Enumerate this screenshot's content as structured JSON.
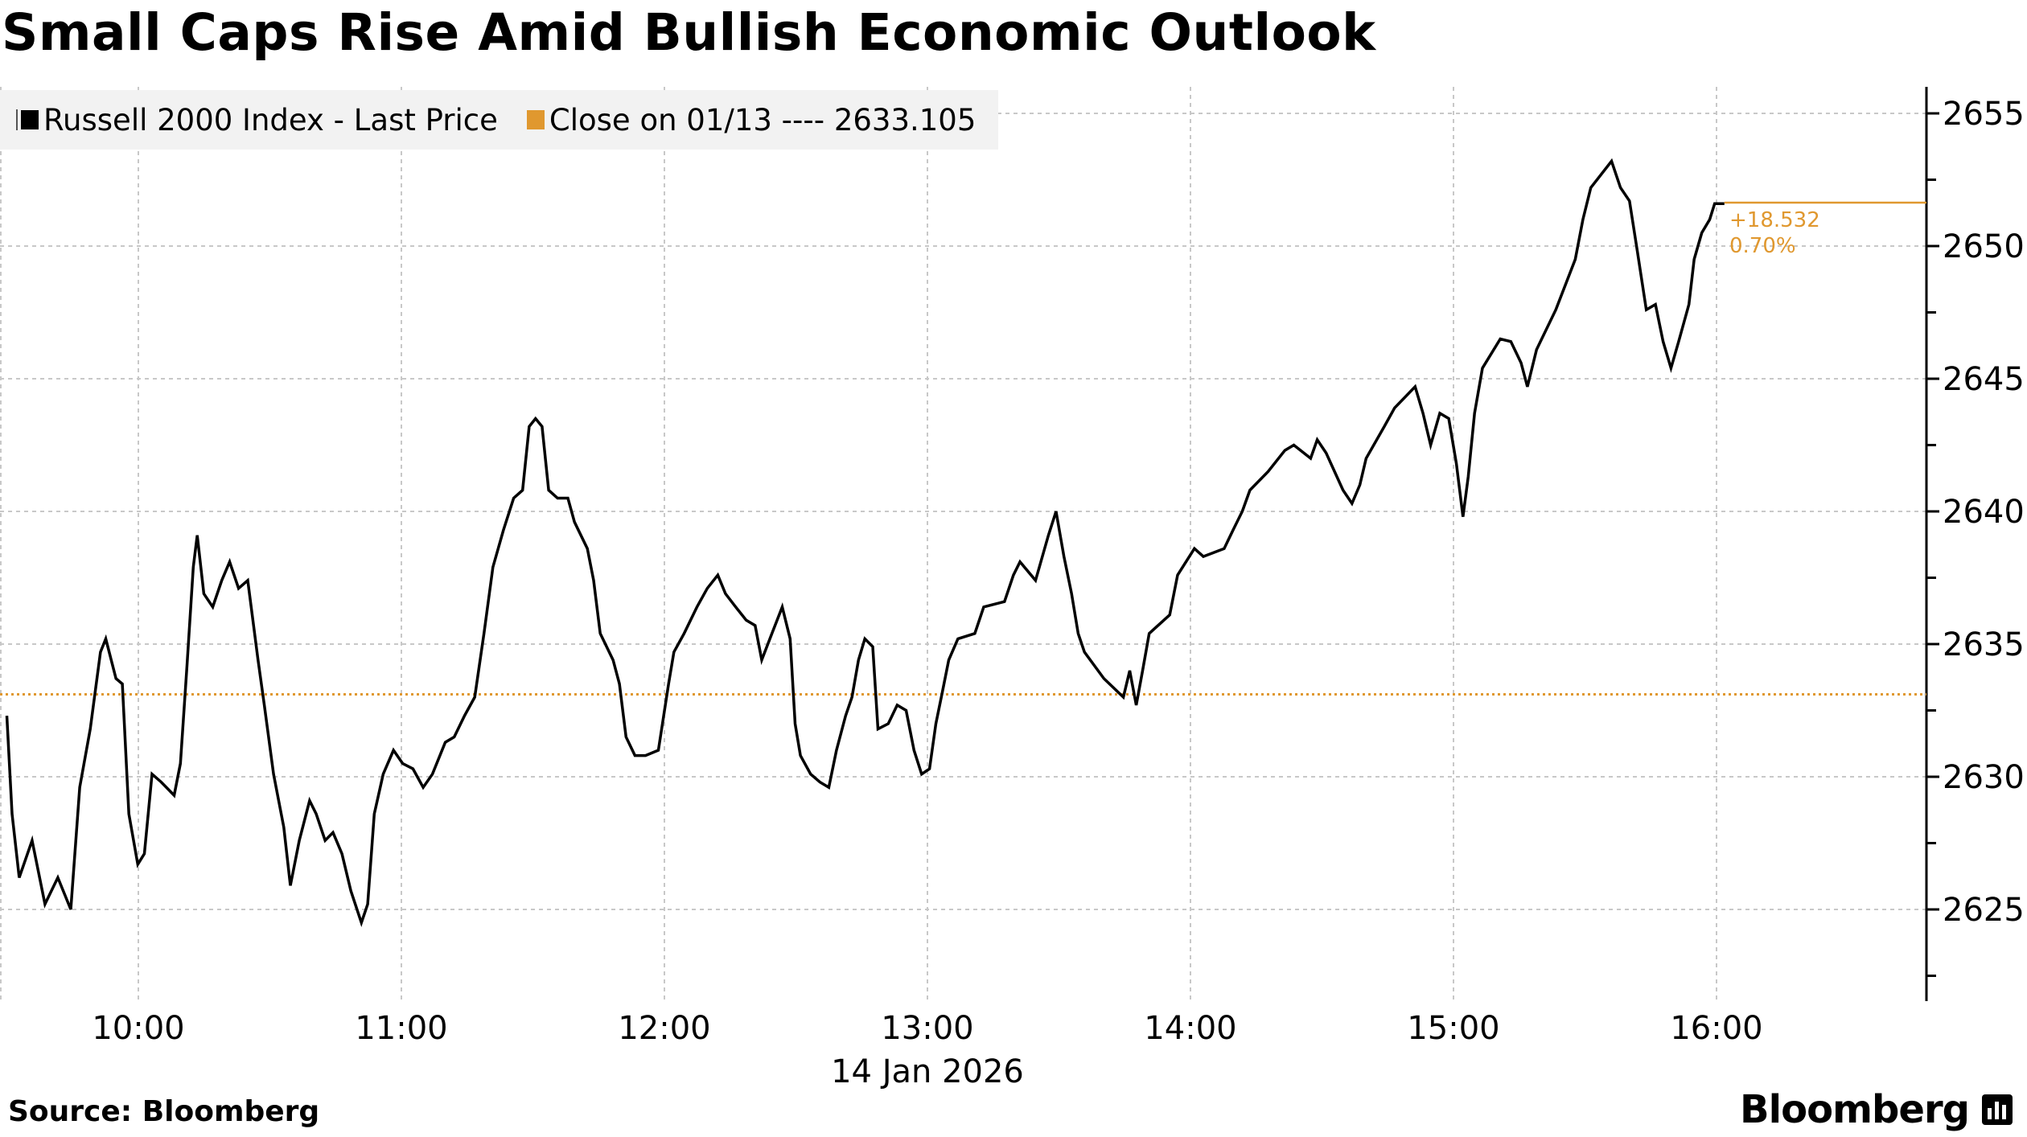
{
  "title": "Small Caps Rise Amid Bullish Economic Outlook",
  "legend": {
    "series_label": "Russell 2000 Index - Last Price",
    "close_label": "Close on 01/13 ---- 2633.105"
  },
  "annotation": {
    "change": "+18.532",
    "percent": "0.70%"
  },
  "footer": {
    "source": "Source: Bloomberg",
    "brand": "Bloomberg"
  },
  "colors": {
    "line": "#000000",
    "accent": "#e0982f",
    "grid": "#c8c8c8",
    "legend_bg": "#f2f2f2"
  },
  "chart_data": {
    "type": "line",
    "title": "Small Caps Rise Amid Bullish Economic Outlook",
    "xlabel": "14 Jan 2026",
    "ylabel": "",
    "x_unit": "hour of day (decimal)",
    "xlim": [
      9.5,
      16.75
    ],
    "ylim": [
      2621,
      2656.5
    ],
    "grid": true,
    "legend_placement": "top-left",
    "x_ticks": [
      10,
      11,
      12,
      13,
      14,
      15,
      16
    ],
    "x_tick_labels": [
      "10:00",
      "11:00",
      "12:00",
      "13:00",
      "14:00",
      "15:00",
      "16:00"
    ],
    "y_ticks": [
      2625,
      2630,
      2635,
      2640,
      2645,
      2650,
      2655
    ],
    "y_tick_labels": [
      "2625",
      "2630",
      "2635",
      "2640",
      "2645",
      "2650",
      "2655"
    ],
    "reference_line": {
      "name": "Close on 01/13",
      "value": 2633.105
    },
    "last_value": 2651.637,
    "series": [
      {
        "name": "Russell 2000 Index - Last Price",
        "points": [
          [
            9.5,
            2632.3
          ],
          [
            9.52,
            2628.6
          ],
          [
            9.547,
            2626.2
          ],
          [
            9.596,
            2627.6
          ],
          [
            9.645,
            2625.2
          ],
          [
            9.694,
            2626.2
          ],
          [
            9.743,
            2625.0
          ],
          [
            9.777,
            2629.6
          ],
          [
            9.817,
            2631.8
          ],
          [
            9.856,
            2634.7
          ],
          [
            9.876,
            2635.2
          ],
          [
            9.915,
            2633.7
          ],
          [
            9.939,
            2633.5
          ],
          [
            9.964,
            2628.6
          ],
          [
            9.998,
            2626.7
          ],
          [
            10.023,
            2627.1
          ],
          [
            10.052,
            2630.1
          ],
          [
            10.087,
            2629.8
          ],
          [
            10.136,
            2629.3
          ],
          [
            10.16,
            2630.5
          ],
          [
            10.185,
            2634.2
          ],
          [
            10.209,
            2637.9
          ],
          [
            10.224,
            2639.1
          ],
          [
            10.249,
            2636.9
          ],
          [
            10.283,
            2636.4
          ],
          [
            10.317,
            2637.4
          ],
          [
            10.347,
            2638.1
          ],
          [
            10.381,
            2637.1
          ],
          [
            10.416,
            2637.4
          ],
          [
            10.455,
            2634.4
          ],
          [
            10.479,
            2632.7
          ],
          [
            10.514,
            2630.1
          ],
          [
            10.553,
            2628.1
          ],
          [
            10.578,
            2625.9
          ],
          [
            10.612,
            2627.6
          ],
          [
            10.651,
            2629.1
          ],
          [
            10.676,
            2628.6
          ],
          [
            10.71,
            2627.6
          ],
          [
            10.74,
            2627.9
          ],
          [
            10.774,
            2627.1
          ],
          [
            10.808,
            2625.7
          ],
          [
            10.848,
            2624.5
          ],
          [
            10.872,
            2625.2
          ],
          [
            10.897,
            2628.6
          ],
          [
            10.931,
            2630.1
          ],
          [
            10.97,
            2631.0
          ],
          [
            11.005,
            2630.5
          ],
          [
            11.044,
            2630.3
          ],
          [
            11.083,
            2629.6
          ],
          [
            11.118,
            2630.1
          ],
          [
            11.167,
            2631.3
          ],
          [
            11.201,
            2631.5
          ],
          [
            11.24,
            2632.3
          ],
          [
            11.279,
            2633.0
          ],
          [
            11.314,
            2635.4
          ],
          [
            11.348,
            2637.9
          ],
          [
            11.388,
            2639.3
          ],
          [
            11.427,
            2640.5
          ],
          [
            11.461,
            2640.8
          ],
          [
            11.486,
            2643.2
          ],
          [
            11.51,
            2643.5
          ],
          [
            11.535,
            2643.2
          ],
          [
            11.56,
            2640.8
          ],
          [
            11.594,
            2640.5
          ],
          [
            11.633,
            2640.5
          ],
          [
            11.658,
            2639.6
          ],
          [
            11.707,
            2638.6
          ],
          [
            11.731,
            2637.4
          ],
          [
            11.756,
            2635.4
          ],
          [
            11.805,
            2634.4
          ],
          [
            11.829,
            2633.5
          ],
          [
            11.854,
            2631.5
          ],
          [
            11.888,
            2630.8
          ],
          [
            11.928,
            2630.8
          ],
          [
            11.977,
            2631.0
          ],
          [
            12.016,
            2633.5
          ],
          [
            12.036,
            2634.7
          ],
          [
            12.075,
            2635.4
          ],
          [
            12.124,
            2636.4
          ],
          [
            12.163,
            2637.1
          ],
          [
            12.203,
            2637.6
          ],
          [
            12.232,
            2636.9
          ],
          [
            12.271,
            2636.4
          ],
          [
            12.311,
            2635.9
          ],
          [
            12.345,
            2635.7
          ],
          [
            12.37,
            2634.4
          ],
          [
            12.409,
            2635.4
          ],
          [
            12.448,
            2636.4
          ],
          [
            12.478,
            2635.2
          ],
          [
            12.497,
            2632.0
          ],
          [
            12.517,
            2630.8
          ],
          [
            12.556,
            2630.1
          ],
          [
            12.591,
            2629.8
          ],
          [
            12.625,
            2629.6
          ],
          [
            12.654,
            2631.0
          ],
          [
            12.689,
            2632.3
          ],
          [
            12.713,
            2633.0
          ],
          [
            12.738,
            2634.4
          ],
          [
            12.762,
            2635.2
          ],
          [
            12.792,
            2634.9
          ],
          [
            12.812,
            2631.8
          ],
          [
            12.851,
            2632.0
          ],
          [
            12.885,
            2632.7
          ],
          [
            12.919,
            2632.5
          ],
          [
            12.949,
            2631.0
          ],
          [
            12.978,
            2630.1
          ],
          [
            13.008,
            2630.3
          ],
          [
            13.032,
            2632.0
          ],
          [
            13.057,
            2633.2
          ],
          [
            13.081,
            2634.4
          ],
          [
            13.116,
            2635.2
          ],
          [
            13.18,
            2635.4
          ],
          [
            13.214,
            2636.4
          ],
          [
            13.293,
            2636.6
          ],
          [
            13.327,
            2637.6
          ],
          [
            13.352,
            2638.1
          ],
          [
            13.411,
            2637.4
          ],
          [
            13.46,
            2639.1
          ],
          [
            13.489,
            2640.0
          ],
          [
            13.519,
            2638.3
          ],
          [
            13.548,
            2636.9
          ],
          [
            13.573,
            2635.4
          ],
          [
            13.597,
            2634.7
          ],
          [
            13.671,
            2633.7
          ],
          [
            13.745,
            2633.0
          ],
          [
            13.769,
            2634.0
          ],
          [
            13.794,
            2632.7
          ],
          [
            13.818,
            2634.0
          ],
          [
            13.843,
            2635.4
          ],
          [
            13.921,
            2636.1
          ],
          [
            13.951,
            2637.6
          ],
          [
            14.015,
            2638.6
          ],
          [
            14.049,
            2638.3
          ],
          [
            14.128,
            2638.6
          ],
          [
            14.162,
            2639.3
          ],
          [
            14.197,
            2640.0
          ],
          [
            14.226,
            2640.8
          ],
          [
            14.295,
            2641.5
          ],
          [
            14.359,
            2642.3
          ],
          [
            14.393,
            2642.5
          ],
          [
            14.457,
            2642.0
          ],
          [
            14.482,
            2642.7
          ],
          [
            14.516,
            2642.2
          ],
          [
            14.58,
            2640.8
          ],
          [
            14.614,
            2640.3
          ],
          [
            14.644,
            2641.0
          ],
          [
            14.668,
            2642.0
          ],
          [
            14.737,
            2643.2
          ],
          [
            14.776,
            2643.9
          ],
          [
            14.854,
            2644.7
          ],
          [
            14.884,
            2643.7
          ],
          [
            14.913,
            2642.5
          ],
          [
            14.948,
            2643.7
          ],
          [
            14.982,
            2643.5
          ],
          [
            15.011,
            2641.8
          ],
          [
            15.036,
            2639.8
          ],
          [
            15.056,
            2641.3
          ],
          [
            15.08,
            2643.7
          ],
          [
            15.11,
            2645.4
          ],
          [
            15.178,
            2646.5
          ],
          [
            15.218,
            2646.4
          ],
          [
            15.257,
            2645.6
          ],
          [
            15.281,
            2644.7
          ],
          [
            15.316,
            2646.1
          ],
          [
            15.389,
            2647.6
          ],
          [
            15.463,
            2649.5
          ],
          [
            15.492,
            2651.0
          ],
          [
            15.522,
            2652.2
          ],
          [
            15.601,
            2653.2
          ],
          [
            15.635,
            2652.2
          ],
          [
            15.669,
            2651.7
          ],
          [
            15.699,
            2649.8
          ],
          [
            15.733,
            2647.6
          ],
          [
            15.768,
            2647.8
          ],
          [
            15.797,
            2646.4
          ],
          [
            15.827,
            2645.4
          ],
          [
            15.856,
            2646.4
          ],
          [
            15.895,
            2647.8
          ],
          [
            15.915,
            2649.5
          ],
          [
            15.944,
            2650.5
          ],
          [
            15.974,
            2651.0
          ],
          [
            15.993,
            2651.6
          ],
          [
            16.03,
            2651.6
          ]
        ]
      }
    ]
  }
}
